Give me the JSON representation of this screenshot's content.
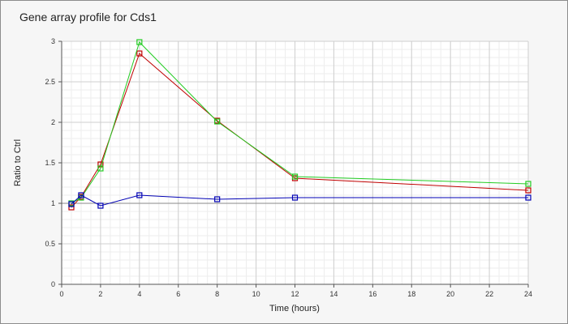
{
  "chart_data": {
    "type": "line",
    "title": "Gene array profile for Cds1",
    "xlabel": "Time (hours)",
    "ylabel": "Ratio to Ctrl",
    "xlim": [
      0,
      24
    ],
    "ylim": [
      0,
      3
    ],
    "x_ticks": [
      0,
      2,
      4,
      6,
      8,
      10,
      12,
      14,
      16,
      18,
      20,
      22,
      24
    ],
    "y_ticks": [
      0,
      0.5,
      1,
      1.5,
      2,
      2.5,
      3
    ],
    "y_tick_labels": [
      "0",
      "0.5",
      "1",
      "1.5",
      "2",
      "2.5",
      "3"
    ],
    "grid": true,
    "minor_grid": true,
    "reference_line": 1,
    "marker": "square",
    "series": [
      {
        "color": "#c00000",
        "x": [
          0.5,
          1,
          2,
          4,
          8,
          12,
          24
        ],
        "values": [
          0.95,
          1.08,
          1.48,
          2.85,
          2.02,
          1.31,
          1.16
        ]
      },
      {
        "color": "#22cc22",
        "x": [
          0.5,
          1,
          2,
          4,
          8,
          12,
          24
        ],
        "values": [
          1.0,
          1.07,
          1.43,
          2.99,
          2.01,
          1.33,
          1.24
        ]
      },
      {
        "color": "#0000b4",
        "x": [
          0.5,
          1,
          2,
          4,
          8,
          12,
          24
        ],
        "values": [
          0.99,
          1.1,
          0.97,
          1.1,
          1.05,
          1.07,
          1.07
        ]
      }
    ]
  }
}
